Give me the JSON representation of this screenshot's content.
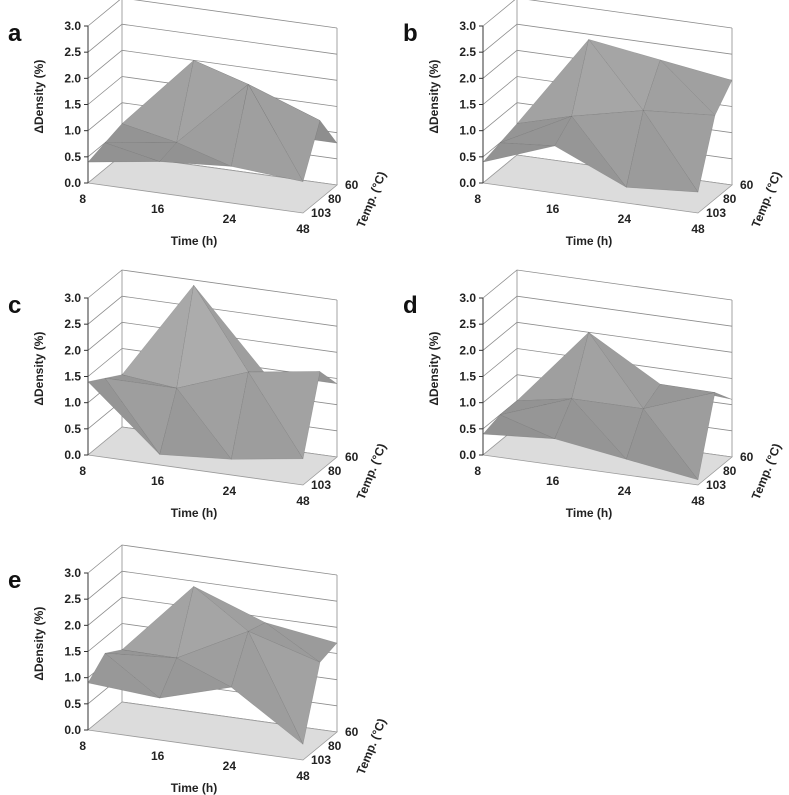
{
  "chart_data": [
    {
      "panel": "a",
      "type": "surface",
      "xlabel": "Time (h)",
      "ylabel": "Temp. (°C)",
      "zlabel": "ΔDensity (%)",
      "x_ticks": [
        "8",
        "16",
        "24",
        "48"
      ],
      "y_ticks": [
        "60",
        "80",
        "103"
      ],
      "z_ticks": [
        "0.0",
        "0.5",
        "1.0",
        "1.5",
        "2.0",
        "2.5",
        "3.0"
      ],
      "zlim": [
        0,
        3
      ],
      "z": [
        [
          0.6,
          2.0,
          0.8,
          0.8
        ],
        [
          0.5,
          0.7,
          2.0,
          1.5
        ],
        [
          0.4,
          0.6,
          0.7,
          0.6
        ]
      ]
    },
    {
      "panel": "b",
      "type": "surface",
      "xlabel": "Time (h)",
      "ylabel": "Temp. (°C)",
      "zlabel": "ΔDensity (%)",
      "x_ticks": [
        "8",
        "16",
        "24",
        "48"
      ],
      "y_ticks": [
        "60",
        "80",
        "103"
      ],
      "z_ticks": [
        "0.0",
        "0.5",
        "1.0",
        "1.5",
        "2.0",
        "2.5",
        "3.0"
      ],
      "zlim": [
        0,
        3
      ],
      "z": [
        [
          0.6,
          2.4,
          2.2,
          2.0
        ],
        [
          0.5,
          1.2,
          1.5,
          1.6
        ],
        [
          0.4,
          0.9,
          0.3,
          0.4
        ]
      ]
    },
    {
      "panel": "c",
      "type": "surface",
      "xlabel": "Time (h)",
      "ylabel": "Temp. (°C)",
      "zlabel": "ΔDensity (%)",
      "x_ticks": [
        "8",
        "16",
        "24",
        "48"
      ],
      "y_ticks": [
        "60",
        "80",
        "103"
      ],
      "z_ticks": [
        "0.0",
        "0.5",
        "1.0",
        "1.5",
        "2.0",
        "2.5",
        "3.0"
      ],
      "zlim": [
        0,
        3
      ],
      "z": [
        [
          1.0,
          2.9,
          1.4,
          1.4
        ],
        [
          1.2,
          1.2,
          1.7,
          1.9
        ],
        [
          1.4,
          0.2,
          0.3,
          0.5
        ]
      ]
    },
    {
      "panel": "d",
      "type": "surface",
      "xlabel": "Time (h)",
      "ylabel": "Temp. (°C)",
      "zlabel": "ΔDensity (%)",
      "x_ticks": [
        "8",
        "16",
        "24",
        "48"
      ],
      "y_ticks": [
        "60",
        "80",
        "103"
      ],
      "z_ticks": [
        "0.0",
        "0.5",
        "1.0",
        "1.5",
        "2.0",
        "2.5",
        "3.0"
      ],
      "zlim": [
        0,
        3
      ],
      "z": [
        [
          0.5,
          2.0,
          1.2,
          1.1
        ],
        [
          0.5,
          1.0,
          1.0,
          1.5
        ],
        [
          0.4,
          0.5,
          0.3,
          0.1
        ]
      ]
    },
    {
      "panel": "e",
      "type": "surface",
      "xlabel": "Time (h)",
      "ylabel": "Temp. (°C)",
      "zlabel": "ΔDensity (%)",
      "x_ticks": [
        "8",
        "16",
        "24",
        "48"
      ],
      "y_ticks": [
        "60",
        "80",
        "103"
      ],
      "z_ticks": [
        "0.0",
        "0.5",
        "1.0",
        "1.5",
        "2.0",
        "2.5",
        "3.0"
      ],
      "zlim": [
        0,
        3
      ],
      "z": [
        [
          1.0,
          2.4,
          1.9,
          1.7
        ],
        [
          1.2,
          1.3,
          2.0,
          1.6
        ],
        [
          0.9,
          0.8,
          1.2,
          0.3
        ]
      ]
    }
  ]
}
